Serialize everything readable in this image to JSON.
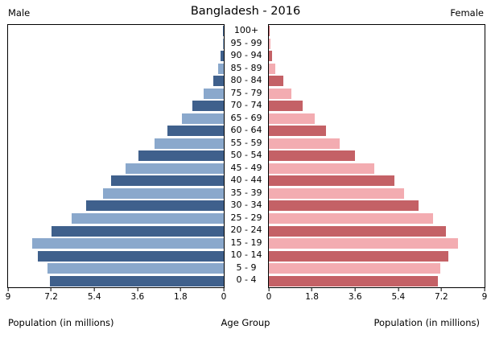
{
  "chart_data": {
    "type": "bar",
    "orientation": "horizontal",
    "variant": "population-pyramid",
    "title": "Bangladesh - 2016",
    "age_groups_top_to_bottom": [
      "100+",
      "95 - 99",
      "90 - 94",
      "85 - 89",
      "80 - 84",
      "75 - 79",
      "70 - 74",
      "65 - 69",
      "60 - 64",
      "55 - 59",
      "50 - 54",
      "45 - 49",
      "40 - 44",
      "35 - 39",
      "30 - 34",
      "25 - 29",
      "20 - 24",
      "15 - 19",
      "10 - 14",
      "5 - 9",
      "0 - 4"
    ],
    "series": [
      {
        "name": "Male",
        "side": "left",
        "unit": "millions",
        "values_top_to_bottom": [
          0.02,
          0.05,
          0.12,
          0.23,
          0.45,
          0.85,
          1.3,
          1.75,
          2.35,
          2.9,
          3.55,
          4.1,
          4.7,
          5.05,
          5.75,
          6.35,
          7.2,
          8.0,
          7.75,
          7.35,
          7.25
        ]
      },
      {
        "name": "Female",
        "side": "right",
        "unit": "millions",
        "values_top_to_bottom": [
          0.03,
          0.06,
          0.12,
          0.28,
          0.6,
          0.95,
          1.4,
          1.9,
          2.4,
          2.95,
          3.6,
          4.4,
          5.25,
          5.65,
          6.25,
          6.85,
          7.4,
          7.9,
          7.5,
          7.15,
          7.05
        ]
      }
    ],
    "x_axis": {
      "max": 9,
      "tick_values": [
        0,
        1.8,
        3.6,
        5.4,
        7.2,
        9
      ],
      "left_tick_labels": [
        "9",
        "7.2",
        "5.4",
        "3.6",
        "1.8",
        "0"
      ],
      "right_tick_labels": [
        "0",
        "1.8",
        "3.6",
        "5.4",
        "7.2",
        "9"
      ]
    },
    "colors": {
      "male_dark": "#3F608C",
      "male_light": "#8AA8CC",
      "female_dark": "#C46166",
      "female_light": "#F3ACB1"
    },
    "labels": {
      "left_header": "Male",
      "right_header": "Female",
      "left_xlabel": "Population (in millions)",
      "right_xlabel": "Population (in millions)",
      "center_xlabel": "Age Group"
    }
  }
}
